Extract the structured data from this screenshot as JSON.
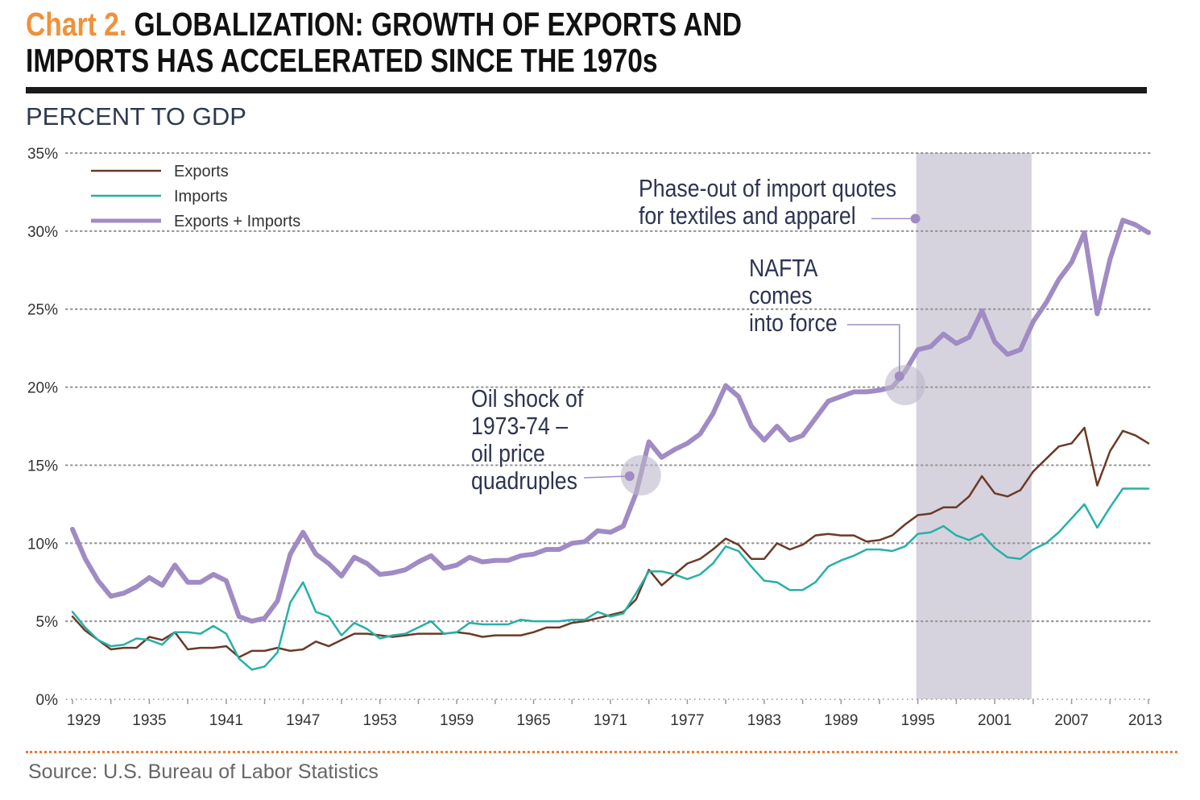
{
  "header": {
    "chart_label": "Chart 2.",
    "title_line1": "GLOBALIZATION: GROWTH OF EXPORTS AND",
    "title_line2": "IMPORTS HAS ACCELERATED SINCE THE 1970s",
    "subtitle": "PERCENT TO GDP"
  },
  "source": "Source: U.S. Bureau of Labor Statistics",
  "colors": {
    "chart_label": "#f0913a",
    "exports": "#6b3a26",
    "imports": "#26b0a8",
    "total": "#a08bc4",
    "shade": "#d6d3de",
    "annotation_text": "#2d3451"
  },
  "chart_data": {
    "type": "line",
    "title": "GLOBALIZATION: GROWTH OF EXPORTS AND IMPORTS HAS ACCELERATED SINCE THE 1970s",
    "ylabel": "PERCENT TO GDP",
    "xlim": [
      1929,
      2013
    ],
    "ylim": [
      0,
      35
    ],
    "grid": "horizontal dotted",
    "legend_placement": "top-left",
    "yticks": [
      "0%",
      "5%",
      "10%",
      "15%",
      "20%",
      "25%",
      "30%",
      "35%"
    ],
    "ytick_values": [
      0,
      5,
      10,
      15,
      20,
      25,
      30,
      35
    ],
    "xticks": [
      "1929",
      "1935",
      "1941",
      "1947",
      "1953",
      "1959",
      "1965",
      "1971",
      "1977",
      "1983",
      "1989",
      "1995",
      "2001",
      "2007",
      "2013"
    ],
    "start_year": 1929,
    "series": [
      {
        "name": "Exports",
        "key": "exports",
        "values": [
          5.3,
          4.4,
          3.8,
          3.2,
          3.3,
          3.3,
          4.0,
          3.8,
          4.3,
          3.2,
          3.3,
          3.3,
          3.4,
          2.7,
          3.1,
          3.1,
          3.3,
          3.1,
          3.2,
          3.7,
          3.4,
          3.8,
          4.2,
          4.2,
          4.1,
          4.0,
          4.1,
          4.2,
          4.2,
          4.2,
          4.3,
          4.2,
          4.0,
          4.1,
          4.1,
          4.1,
          4.3,
          4.6,
          4.6,
          4.9,
          5.0,
          5.2,
          5.4,
          5.6,
          6.4,
          8.3,
          7.3,
          8.0,
          8.7,
          9.0,
          9.6,
          10.3,
          9.9,
          9.0,
          9.0,
          10.0,
          9.6,
          9.9,
          10.5,
          10.6,
          10.5,
          10.5,
          10.1,
          10.2,
          10.5,
          11.2,
          11.8,
          11.9,
          12.3,
          12.3,
          13.0,
          14.3,
          13.2,
          13.0,
          13.4,
          14.6,
          15.4,
          16.2,
          16.4,
          17.4,
          13.7,
          15.9,
          17.2,
          16.9,
          16.4
        ]
      },
      {
        "name": "Imports",
        "key": "imports",
        "values": [
          5.6,
          4.6,
          3.8,
          3.4,
          3.5,
          3.9,
          3.8,
          3.5,
          4.3,
          4.3,
          4.2,
          4.7,
          4.2,
          2.6,
          1.9,
          2.1,
          3.0,
          6.2,
          7.5,
          5.6,
          5.3,
          4.1,
          4.9,
          4.5,
          3.9,
          4.1,
          4.2,
          4.6,
          5.0,
          4.2,
          4.3,
          4.9,
          4.8,
          4.8,
          4.8,
          5.1,
          5.0,
          5.0,
          5.0,
          5.1,
          5.1,
          5.6,
          5.3,
          5.5,
          6.8,
          8.2,
          8.2,
          8.0,
          7.7,
          8.0,
          8.7,
          9.8,
          9.5,
          8.5,
          7.6,
          7.5,
          7.0,
          7.0,
          7.5,
          8.5,
          8.9,
          9.2,
          9.6,
          9.6,
          9.5,
          9.8,
          10.6,
          10.7,
          11.1,
          10.5,
          10.2,
          10.6,
          9.7,
          9.1,
          9.0,
          9.6,
          10.0,
          10.7,
          11.6,
          12.5,
          11.0,
          12.3,
          13.5,
          13.5,
          13.5
        ]
      },
      {
        "name": "Exports + Imports",
        "key": "total",
        "values": [
          10.9,
          9.0,
          7.6,
          6.6,
          6.8,
          7.2,
          7.8,
          7.3,
          8.6,
          7.5,
          7.5,
          8.0,
          7.6,
          5.3,
          5.0,
          5.2,
          6.3,
          9.3,
          10.7,
          9.3,
          8.7,
          7.9,
          9.1,
          8.7,
          8.0,
          8.1,
          8.3,
          8.8,
          9.2,
          8.4,
          8.6,
          9.1,
          8.8,
          8.9,
          8.9,
          9.2,
          9.3,
          9.6,
          9.6,
          10.0,
          10.1,
          10.8,
          10.7,
          11.1,
          13.2,
          16.5,
          15.5,
          16.0,
          16.4,
          17.0,
          18.3,
          20.1,
          19.4,
          17.5,
          16.6,
          17.5,
          16.6,
          16.9,
          18.0,
          19.1,
          19.4,
          19.7,
          19.7,
          19.8,
          20.0,
          21.0,
          22.4,
          22.6,
          23.4,
          22.8,
          23.2,
          24.9,
          22.9,
          22.1,
          22.4,
          24.2,
          25.4,
          26.9,
          28.0,
          29.9,
          24.7,
          28.2,
          30.7,
          30.4,
          29.9
        ]
      }
    ],
    "shaded_range": [
      1995,
      2004
    ],
    "annotations": [
      {
        "key": "oil",
        "lines": [
          "Oil shock of",
          "1973-74 –",
          "oil price",
          "quadruples"
        ],
        "year": 1973,
        "value": 14.3
      },
      {
        "key": "nafta",
        "lines": [
          "NAFTA",
          "comes",
          "into force"
        ],
        "year": 1994,
        "value": 20.7
      },
      {
        "key": "textiles",
        "lines": [
          "Phase-out of import quotes",
          "for textiles and apparel"
        ],
        "year": 1996,
        "value": 30.8
      }
    ]
  }
}
